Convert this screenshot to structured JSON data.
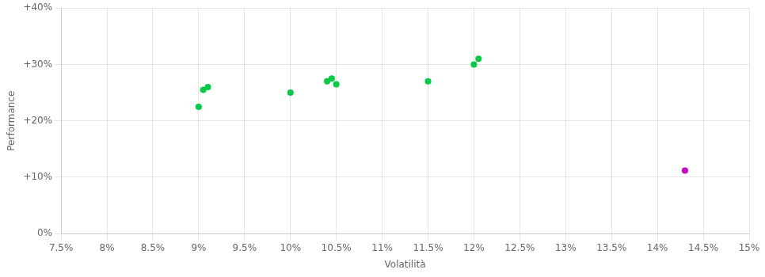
{
  "chart_data": {
    "type": "scatter",
    "xlabel": "Volatilità",
    "ylabel": "Performance",
    "series": [
      {
        "color": "#00cc44",
        "x": [
          9.0,
          9.05,
          9.1,
          10.0,
          10.4,
          10.45,
          10.5,
          11.5,
          12.0,
          12.05
        ],
        "values": [
          22.5,
          25.5,
          26.0,
          25.0,
          27.0,
          27.5,
          26.5,
          27.0,
          30.0,
          31.0
        ]
      },
      {
        "color": "#cc00cc",
        "x": [
          14.3
        ],
        "values": [
          11.2
        ]
      }
    ],
    "xlim": [
      7.5,
      15.0
    ],
    "ylim": [
      0,
      40
    ],
    "xticks": [
      {
        "value": 7.5,
        "label": "7.5%"
      },
      {
        "value": 8.0,
        "label": "8%"
      },
      {
        "value": 8.5,
        "label": "8.5%"
      },
      {
        "value": 9.0,
        "label": "9%"
      },
      {
        "value": 9.5,
        "label": "9.5%"
      },
      {
        "value": 10.0,
        "label": "10%"
      },
      {
        "value": 10.5,
        "label": "10.5%"
      },
      {
        "value": 11.0,
        "label": "11%"
      },
      {
        "value": 11.5,
        "label": "11.5%"
      },
      {
        "value": 12.0,
        "label": "12%"
      },
      {
        "value": 12.5,
        "label": "12.5%"
      },
      {
        "value": 13.0,
        "label": "13%"
      },
      {
        "value": 13.5,
        "label": "13.5%"
      },
      {
        "value": 14.0,
        "label": "14%"
      },
      {
        "value": 14.5,
        "label": "14.5%"
      },
      {
        "value": 15.0,
        "label": "15%"
      }
    ],
    "yticks": [
      {
        "value": 0,
        "label": "0%"
      },
      {
        "value": 10,
        "label": "+10%"
      },
      {
        "value": 20,
        "label": "+20%"
      },
      {
        "value": 30,
        "label": "+30%"
      },
      {
        "value": 40,
        "label": "+40%"
      }
    ],
    "grid": true
  }
}
